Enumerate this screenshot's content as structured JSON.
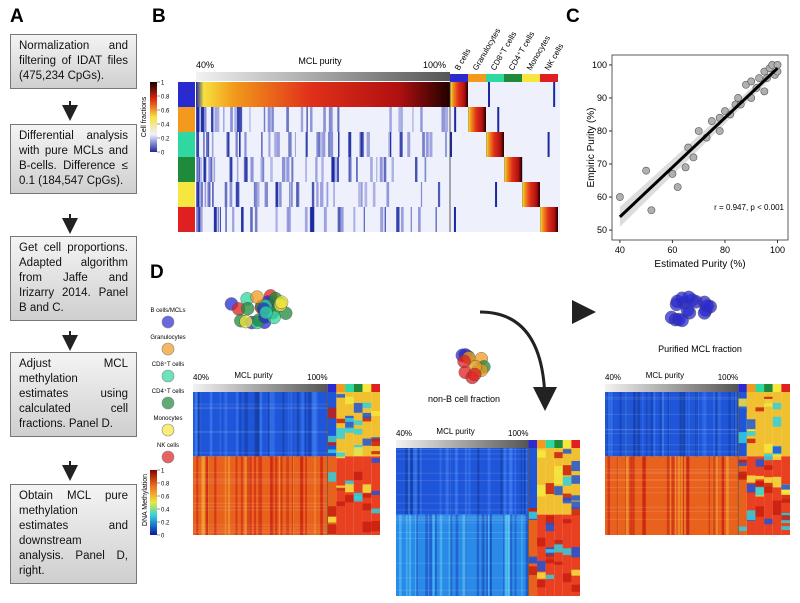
{
  "panel_labels": {
    "a": "A",
    "b": "B",
    "c": "C",
    "d": "D"
  },
  "workflow": [
    "Normalization and filtering of IDAT files (475,234 CpGs).",
    "Differential analysis with pure MCLs and B-cells. Difference ≤ 0.1 (184,547 CpGs).",
    "Get cell proportions. Adapted algorithm from Jaffe and Irizarry 2014. Panel B and C.",
    "Adjust MCL methylation estimates using calculated cell fractions. Panel D.",
    "Obtain MCL pure methylation estimates and downstream analysis. Panel D, right."
  ],
  "panel_b": {
    "purity_start": "40%",
    "purity_label": "MCL purity",
    "purity_end": "100%",
    "cell_types": [
      "B cells",
      "Granulocytes",
      "CD8⁺T cells",
      "CD4⁺T cells",
      "Monocytes",
      "NK cells"
    ],
    "scale_label": "Cell fractions",
    "scale_ticks": [
      1,
      0.8,
      0.6,
      0.4,
      0.2,
      0
    ]
  },
  "panel_c": {
    "type": "scatter",
    "x": [
      40,
      52,
      50,
      60,
      62,
      65,
      66,
      68,
      70,
      73,
      75,
      78,
      78,
      80,
      82,
      84,
      85,
      86,
      88,
      90,
      90,
      92,
      93,
      95,
      95,
      97,
      98,
      99,
      100,
      100,
      96
    ],
    "values": [
      60,
      56,
      68,
      67,
      63,
      69,
      75,
      72,
      80,
      78,
      83,
      80,
      84,
      86,
      85,
      88,
      90,
      88,
      94,
      95,
      90,
      93,
      96,
      92,
      98,
      99,
      100,
      97,
      100,
      98,
      96
    ],
    "color": "#b0b0b0",
    "fit_x": [
      40,
      100
    ],
    "fit_values": [
      54,
      99
    ],
    "xlim": [
      37,
      104
    ],
    "ylim": [
      47,
      103
    ],
    "xticks": [
      40,
      60,
      80,
      100
    ],
    "yticks": [
      50,
      60,
      70,
      80,
      90,
      100
    ],
    "x_label": "Estimated Purity (%)",
    "y_label": "Empiric Purity (%)",
    "annotation": "r = 0.947, p < 0.001"
  },
  "panel_d": {
    "legend": [
      "B cells/MCLs",
      "Granulocytes",
      "CD8⁺T cells",
      "CD4⁺T cells",
      "Monocytes",
      "NK cells"
    ],
    "scale_label": "DNA Methylation",
    "scale_ticks": [
      1,
      0.8,
      0.6,
      0.4,
      0.2,
      0
    ],
    "heatmaps": [
      {
        "start": "40%",
        "label": "MCL purity",
        "end": "100%"
      },
      {
        "caption": "non-B cell fraction",
        "start": "40%",
        "label": "MCL purity",
        "end": "100%"
      },
      {
        "caption": "Purified MCL fraction",
        "start": "40%",
        "label": "MCL purity",
        "end": "100%"
      }
    ]
  }
}
